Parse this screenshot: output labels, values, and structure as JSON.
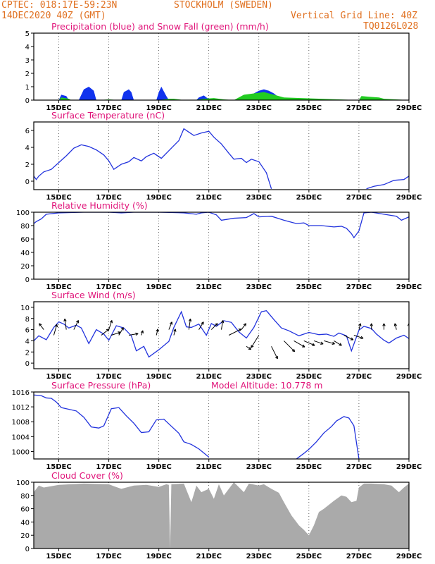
{
  "header": {
    "line1_left": "CPTEC:   018:17E-59:23N",
    "line1_right": "STOCKHOLM (SWEDEN)",
    "line2_left": "14DEC2020 40Z (GMT)",
    "line2_right": "Vertical Grid Line: 40Z",
    "line3_right": "TQ0126L028"
  },
  "colors": {
    "header": "#e07020",
    "title": "#e0157a",
    "line": "#2233dd",
    "precip": "#1133ee",
    "snow": "#22cc22",
    "cloud": "#aaaaaa"
  },
  "chart_data": [
    {
      "type": "area",
      "title": "Precipitation (blue) and Snow Fall (green) (mm/h)",
      "x_range": [
        "14DEC2020 40Z",
        "29DEC2020"
      ],
      "x_ticks": [
        "15DEC",
        "17DEC",
        "19DEC",
        "21DEC",
        "23DEC",
        "25DEC",
        "27DEC",
        "29DEC"
      ],
      "ylim": [
        0,
        5
      ],
      "y_ticks": [
        0,
        1,
        2,
        3,
        4,
        5
      ],
      "grid": true,
      "series": [
        {
          "name": "Precipitation",
          "color": "blue",
          "x": [
            14.6,
            15.0,
            15.1,
            15.3,
            15.4,
            15.8,
            16.0,
            16.2,
            16.4,
            16.5,
            17.0,
            17.5,
            17.6,
            17.8,
            17.9,
            18.0,
            18.1,
            18.4,
            18.5,
            18.9,
            19.0,
            19.1,
            19.3,
            19.4,
            20.5,
            20.6,
            20.8,
            20.9,
            21.1,
            21.2,
            22.0,
            22.5,
            22.8,
            23.0,
            23.2,
            23.4,
            23.6,
            23.8,
            24.0
          ],
          "values": [
            0,
            0,
            0.4,
            0.3,
            0,
            0,
            0.8,
            1.0,
            0.7,
            0,
            0,
            0,
            0.6,
            0.8,
            0.6,
            0,
            0,
            0,
            0,
            0,
            0.6,
            1.0,
            0.3,
            0,
            0,
            0.2,
            0.35,
            0.2,
            0,
            0,
            0,
            0.2,
            0.5,
            0.7,
            0.8,
            0.7,
            0.5,
            0.2,
            0
          ]
        },
        {
          "name": "Snow Fall",
          "color": "green",
          "x": [
            14.3,
            14.6,
            15.0,
            15.1,
            15.4,
            15.5,
            16.6,
            17.0,
            17.4,
            18.5,
            19.0,
            19.4,
            19.6,
            20.0,
            20.4,
            20.8,
            21.2,
            21.6,
            22.0,
            22.4,
            22.8,
            23.2,
            23.6,
            24.0,
            27.0,
            27.1,
            27.4,
            27.8,
            28.0,
            29.0
          ],
          "values": [
            0,
            0,
            0,
            0.2,
            0.1,
            0,
            0,
            0.05,
            0,
            0,
            0,
            0.1,
            0.1,
            0,
            0,
            0.1,
            0.15,
            0.05,
            0,
            0.4,
            0.5,
            0.6,
            0.4,
            0.2,
            0,
            0.3,
            0.25,
            0.2,
            0.1,
            0
          ]
        }
      ]
    },
    {
      "type": "line",
      "title": "Surface Temperature (nC)",
      "x_ticks": [
        "15DEC",
        "17DEC",
        "19DEC",
        "21DEC",
        "23DEC",
        "25DEC",
        "27DEC",
        "29DEC"
      ],
      "ylim": [
        -1,
        7
      ],
      "y_ticks": [
        0,
        2,
        4,
        6
      ],
      "grid": true,
      "series": [
        {
          "x": [
            14.0,
            14.1,
            14.2,
            14.4,
            14.7,
            15.0,
            15.3,
            15.6,
            15.9,
            16.2,
            16.5,
            16.8,
            17.0,
            17.2,
            17.5,
            17.8,
            18.0,
            18.3,
            18.5,
            18.8,
            19.1,
            19.4,
            19.6,
            19.8,
            20.0,
            20.2,
            20.4,
            20.7,
            21.0,
            21.2,
            21.5,
            21.8,
            22.0,
            22.3,
            22.5,
            22.7,
            23.0,
            23.3,
            23.5
          ],
          "values": [
            0.6,
            0.2,
            0.6,
            1.1,
            1.4,
            2.2,
            3.0,
            3.9,
            4.3,
            4.1,
            3.7,
            3.1,
            2.4,
            1.4,
            2.0,
            2.3,
            2.8,
            2.4,
            2.9,
            3.3,
            2.7,
            3.6,
            4.2,
            4.8,
            6.2,
            5.8,
            5.4,
            5.7,
            5.9,
            5.2,
            4.4,
            3.3,
            2.6,
            2.7,
            2.2,
            2.6,
            2.3,
            1.0,
            -0.9
          ]
        },
        {
          "x": [
            27.3,
            27.6,
            28.0,
            28.4,
            28.8,
            29.0
          ],
          "values": [
            -0.9,
            -0.6,
            -0.4,
            0.1,
            0.2,
            0.6
          ]
        }
      ]
    },
    {
      "type": "line",
      "title": "Relative Humidity (%)",
      "x_ticks": [
        "15DEC",
        "17DEC",
        "19DEC",
        "21DEC",
        "23DEC",
        "25DEC",
        "27DEC",
        "29DEC"
      ],
      "ylim": [
        0,
        100
      ],
      "y_ticks": [
        0,
        20,
        40,
        60,
        80,
        100
      ],
      "grid": true,
      "series": [
        {
          "x": [
            14.0,
            14.1,
            14.3,
            14.5,
            15.0,
            16.0,
            17.0,
            17.5,
            18.0,
            19.0,
            20.0,
            20.5,
            20.7,
            21.0,
            21.3,
            21.5,
            22.0,
            22.5,
            22.8,
            23.0,
            23.5,
            24.0,
            24.5,
            24.8,
            25.0,
            25.5,
            26.0,
            26.3,
            26.5,
            26.7,
            26.8,
            27.0,
            27.2,
            27.5,
            28.0,
            28.5,
            28.7,
            29.0
          ],
          "values": [
            83,
            86,
            90,
            97,
            99,
            100,
            100,
            99,
            100,
            100,
            99,
            97,
            99,
            100,
            96,
            88,
            91,
            92,
            98,
            93,
            94,
            88,
            83,
            84,
            80,
            80,
            78,
            79,
            76,
            68,
            62,
            72,
            99,
            100,
            97,
            94,
            88,
            93
          ]
        }
      ]
    },
    {
      "type": "line",
      "title": "Surface Wind (m/s)",
      "x_ticks": [
        "15DEC",
        "17DEC",
        "19DEC",
        "21DEC",
        "23DEC",
        "25DEC",
        "27DEC",
        "29DEC"
      ],
      "ylim": [
        -1,
        11
      ],
      "y_ticks": [
        0,
        2,
        4,
        6,
        8,
        10
      ],
      "grid": true,
      "series": [
        {
          "x": [
            14.0,
            14.2,
            14.5,
            14.8,
            15.0,
            15.2,
            15.4,
            15.7,
            15.9,
            16.2,
            16.5,
            16.8,
            17.0,
            17.3,
            17.6,
            17.9,
            18.1,
            18.4,
            18.6,
            19.0,
            19.4,
            19.6,
            19.9,
            20.1,
            20.3,
            20.6,
            20.9,
            21.1,
            21.3,
            21.6,
            21.9,
            22.2,
            22.5,
            22.8,
            23.1,
            23.3,
            23.6,
            23.9,
            24.2,
            24.6,
            25.0,
            25.4,
            25.7,
            26.0,
            26.2,
            26.5,
            26.7,
            27.0,
            27.2,
            27.5,
            27.7,
            28.0,
            28.2,
            28.5,
            28.8,
            29.0
          ],
          "values": [
            4.0,
            4.9,
            4.2,
            6.4,
            7.4,
            7.0,
            6.3,
            6.8,
            6.3,
            3.5,
            6.0,
            5.2,
            4.1,
            6.7,
            6.3,
            4.9,
            2.2,
            3.0,
            1.1,
            2.4,
            3.9,
            6.4,
            9.2,
            6.5,
            6.4,
            7.0,
            5.0,
            7.1,
            6.6,
            7.6,
            7.3,
            5.6,
            4.5,
            6.4,
            9.2,
            9.4,
            7.8,
            6.3,
            5.8,
            4.9,
            5.5,
            5.1,
            5.2,
            4.8,
            5.4,
            4.9,
            2.2,
            5.9,
            6.6,
            6.2,
            5.2,
            4.1,
            3.6,
            4.5,
            5.0,
            4.4
          ]
        }
      ],
      "wind_arrows": [
        {
          "x": 14.4,
          "y": 6,
          "u": -0.3,
          "v": 0.4
        },
        {
          "x": 14.8,
          "y": 5,
          "u": 0.2,
          "v": 0.7
        },
        {
          "x": 15.3,
          "y": 6,
          "u": -0.1,
          "v": 0.7
        },
        {
          "x": 15.6,
          "y": 6,
          "u": 0.3,
          "v": 0.6
        },
        {
          "x": 16.7,
          "y": 5,
          "u": 0.5,
          "v": 0.4
        },
        {
          "x": 17.0,
          "y": 6,
          "u": 0.2,
          "v": 0.6
        },
        {
          "x": 17.1,
          "y": 5,
          "u": 0.6,
          "v": 0.2
        },
        {
          "x": 17.4,
          "y": 5,
          "u": 0.3,
          "v": 0.5
        },
        {
          "x": 17.8,
          "y": 5,
          "u": 0.6,
          "v": 0.1
        },
        {
          "x": 18.3,
          "y": 5,
          "u": 0.1,
          "v": 0.3
        },
        {
          "x": 18.9,
          "y": 5,
          "u": 0.1,
          "v": 0.4
        },
        {
          "x": 19.4,
          "y": 6,
          "u": 0.2,
          "v": 0.5
        },
        {
          "x": 19.6,
          "y": 5,
          "u": 0.1,
          "v": 0.4
        },
        {
          "x": 20.2,
          "y": 6,
          "u": 0.1,
          "v": 0.7
        },
        {
          "x": 20.6,
          "y": 6,
          "u": 0.3,
          "v": 0.5
        },
        {
          "x": 21.1,
          "y": 6,
          "u": 0.4,
          "v": 0.4
        },
        {
          "x": 21.5,
          "y": 6,
          "u": 0.1,
          "v": 0.6
        },
        {
          "x": 21.8,
          "y": 5,
          "u": 0.8,
          "v": 0.4
        },
        {
          "x": 22.3,
          "y": 6,
          "u": 0.3,
          "v": 0.4
        },
        {
          "x": 22.5,
          "y": 3,
          "u": 0.3,
          "v": -0.2
        },
        {
          "x": 23.0,
          "y": 5,
          "u": -0.5,
          "v": -0.8
        },
        {
          "x": 23.5,
          "y": 3,
          "u": 0.4,
          "v": -0.8
        },
        {
          "x": 24.0,
          "y": 4,
          "u": 0.7,
          "v": -0.7
        },
        {
          "x": 24.4,
          "y": 4,
          "u": 0.7,
          "v": -0.4
        },
        {
          "x": 24.8,
          "y": 4,
          "u": 0.7,
          "v": -0.3
        },
        {
          "x": 25.2,
          "y": 4,
          "u": 0.6,
          "v": -0.2
        },
        {
          "x": 25.6,
          "y": 4,
          "u": 0.7,
          "v": -0.2
        },
        {
          "x": 26.0,
          "y": 4,
          "u": 0.5,
          "v": -0.3
        },
        {
          "x": 26.4,
          "y": 5,
          "u": 0.6,
          "v": -0.3
        },
        {
          "x": 26.8,
          "y": 5,
          "u": 0.6,
          "v": -0.2
        },
        {
          "x": 27.0,
          "y": 6,
          "u": 0.1,
          "v": 0.4
        },
        {
          "x": 27.5,
          "y": 6,
          "u": 0.0,
          "v": 0.4
        },
        {
          "x": 28.0,
          "y": 6,
          "u": 0.0,
          "v": 0.4
        },
        {
          "x": 28.5,
          "y": 6,
          "u": -0.1,
          "v": 0.4
        },
        {
          "x": 29.0,
          "y": 6,
          "u": 0.0,
          "v": 0.4
        }
      ]
    },
    {
      "type": "line",
      "title": "Surface Pressure (hPa)",
      "annotation": "Model Altitude: 10.778 m",
      "x_ticks": [
        "15DEC",
        "17DEC",
        "19DEC",
        "21DEC",
        "23DEC",
        "25DEC",
        "27DEC",
        "29DEC"
      ],
      "ylim": [
        998,
        1016
      ],
      "y_ticks": [
        1000,
        1004,
        1008,
        1012,
        1016
      ],
      "grid": true,
      "series": [
        {
          "x": [
            14.0,
            14.3,
            14.5,
            14.7,
            14.9,
            15.1,
            15.3,
            15.7,
            16.0,
            16.3,
            16.6,
            16.8,
            17.1,
            17.4,
            17.7,
            18.0,
            18.3,
            18.6,
            18.9,
            19.2,
            19.5,
            19.8,
            20.0,
            20.3,
            20.6,
            21.0
          ],
          "values": [
            1015.2,
            1015.0,
            1014.4,
            1014.3,
            1013.3,
            1011.8,
            1011.5,
            1010.9,
            1009.2,
            1006.6,
            1006.3,
            1006.9,
            1011.5,
            1011.8,
            1009.6,
            1007.6,
            1005.1,
            1005.3,
            1008.5,
            1008.7,
            1006.8,
            1004.9,
            1002.6,
            1001.9,
            1000.7,
            998.5
          ]
        },
        {
          "x": [
            24.5,
            24.8,
            25.0,
            25.3,
            25.6,
            25.9,
            26.1,
            26.4,
            26.6,
            26.8,
            27.0
          ],
          "values": [
            998.0,
            999.5,
            1000.6,
            1002.6,
            1005.0,
            1006.7,
            1008.2,
            1009.4,
            1009.0,
            1006.9,
            998.0
          ]
        }
      ]
    },
    {
      "type": "area",
      "title": "Cloud Cover (%)",
      "x_ticks": [
        "15DEC",
        "17DEC",
        "19DEC",
        "21DEC",
        "23DEC",
        "25DEC",
        "27DEC",
        "29DEC"
      ],
      "ylim": [
        0,
        100
      ],
      "y_ticks": [
        0,
        20,
        40,
        60,
        80,
        100
      ],
      "grid": true,
      "series": [
        {
          "color": "gray",
          "x": [
            14.0,
            14.2,
            14.4,
            15.0,
            16.0,
            17.0,
            17.2,
            17.5,
            18.0,
            18.5,
            19.0,
            19.3,
            19.4,
            19.45,
            19.5,
            20.0,
            20.3,
            20.4,
            20.5,
            20.7,
            21.0,
            21.2,
            21.4,
            21.6,
            22.0,
            22.4,
            22.6,
            23.0,
            23.2,
            23.5,
            23.8,
            24.0,
            24.3,
            24.6,
            24.8,
            25.0,
            25.2,
            25.4,
            25.6,
            26.0,
            26.3,
            26.5,
            26.7,
            26.9,
            27.0,
            27.2,
            27.5,
            28.0,
            28.3,
            28.6,
            28.8,
            29.0
          ],
          "values": [
            85,
            95,
            92,
            96,
            98,
            97,
            94,
            90,
            95,
            96,
            93,
            97,
            96,
            0,
            97,
            98,
            70,
            82,
            95,
            85,
            90,
            75,
            97,
            80,
            100,
            85,
            98,
            95,
            97,
            90,
            84,
            70,
            50,
            35,
            28,
            20,
            35,
            55,
            60,
            72,
            80,
            78,
            70,
            72,
            92,
            98,
            98,
            97,
            95,
            85,
            92,
            98
          ]
        }
      ]
    }
  ]
}
